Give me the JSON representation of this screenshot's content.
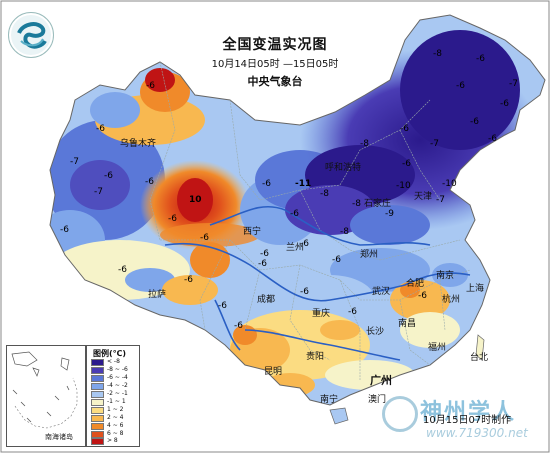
{
  "header": {
    "title": "全国变温实况图",
    "time_range": "10月14日05时 —15日05时",
    "agency": "中央气象台"
  },
  "cities": [
    {
      "name": "乌鲁木齐"
    },
    {
      "name": "呼和浩特"
    },
    {
      "name": "天津"
    },
    {
      "name": "石家庄"
    },
    {
      "name": "西宁"
    },
    {
      "name": "兰州"
    },
    {
      "name": "郑州"
    },
    {
      "name": "拉萨"
    },
    {
      "name": "成都"
    },
    {
      "name": "武汉"
    },
    {
      "name": "合肥"
    },
    {
      "name": "南京"
    },
    {
      "name": "上海"
    },
    {
      "name": "杭州"
    },
    {
      "name": "重庆"
    },
    {
      "name": "长沙"
    },
    {
      "name": "南昌"
    },
    {
      "name": "福州"
    },
    {
      "name": "贵阳"
    },
    {
      "name": "昆明"
    },
    {
      "name": "广州"
    },
    {
      "name": "南宁"
    },
    {
      "name": "澳门"
    },
    {
      "name": "台北"
    }
  ],
  "contour_values": [
    "-6",
    "-6",
    "-7",
    "-6",
    "-6",
    "-7",
    "-6",
    "-8",
    "-6",
    "-7",
    "-10",
    "-7",
    "-6",
    "-6",
    "-8",
    "-6",
    "-8",
    "-6",
    "10",
    "-6",
    "-6",
    "-6",
    "-6",
    "-6",
    "-6",
    "-6",
    "-6",
    "-6",
    "-6",
    "-6",
    "-6",
    "-8",
    "-9",
    "-10",
    "-11",
    "-8",
    "-7",
    "-6",
    "-6",
    "-6",
    "-6",
    "-6"
  ],
  "legend": {
    "title": "图例(℃)",
    "items": [
      {
        "label": "< -8",
        "color": "#2b1a8c"
      },
      {
        "label": "-8 ~ -6",
        "color": "#4a3cb4"
      },
      {
        "label": "-6 ~ -4",
        "color": "#5a78d8"
      },
      {
        "label": "-4 ~ -2",
        "color": "#7fa6ea"
      },
      {
        "label": "-2 ~ -1",
        "color": "#a9c8f2"
      },
      {
        "label": "-1 ~ 1",
        "color": "#f6f3c9"
      },
      {
        "label": "1 ~ 2",
        "color": "#fbdc82"
      },
      {
        "label": "2 ~ 4",
        "color": "#f8b850"
      },
      {
        "label": "4 ~ 6",
        "color": "#f08a2a"
      },
      {
        "label": "6 ~ 8",
        "color": "#e0501c"
      },
      {
        "label": "> 8",
        "color": "#c01414"
      }
    ]
  },
  "inset": {
    "label": "南海诸岛"
  },
  "footer": {
    "made": "10月15日07时制作"
  },
  "watermark": {
    "text": "神州学人",
    "url": "www.719300.net"
  },
  "colors": {
    "water": "#2a5fc4",
    "border": "#888888"
  }
}
